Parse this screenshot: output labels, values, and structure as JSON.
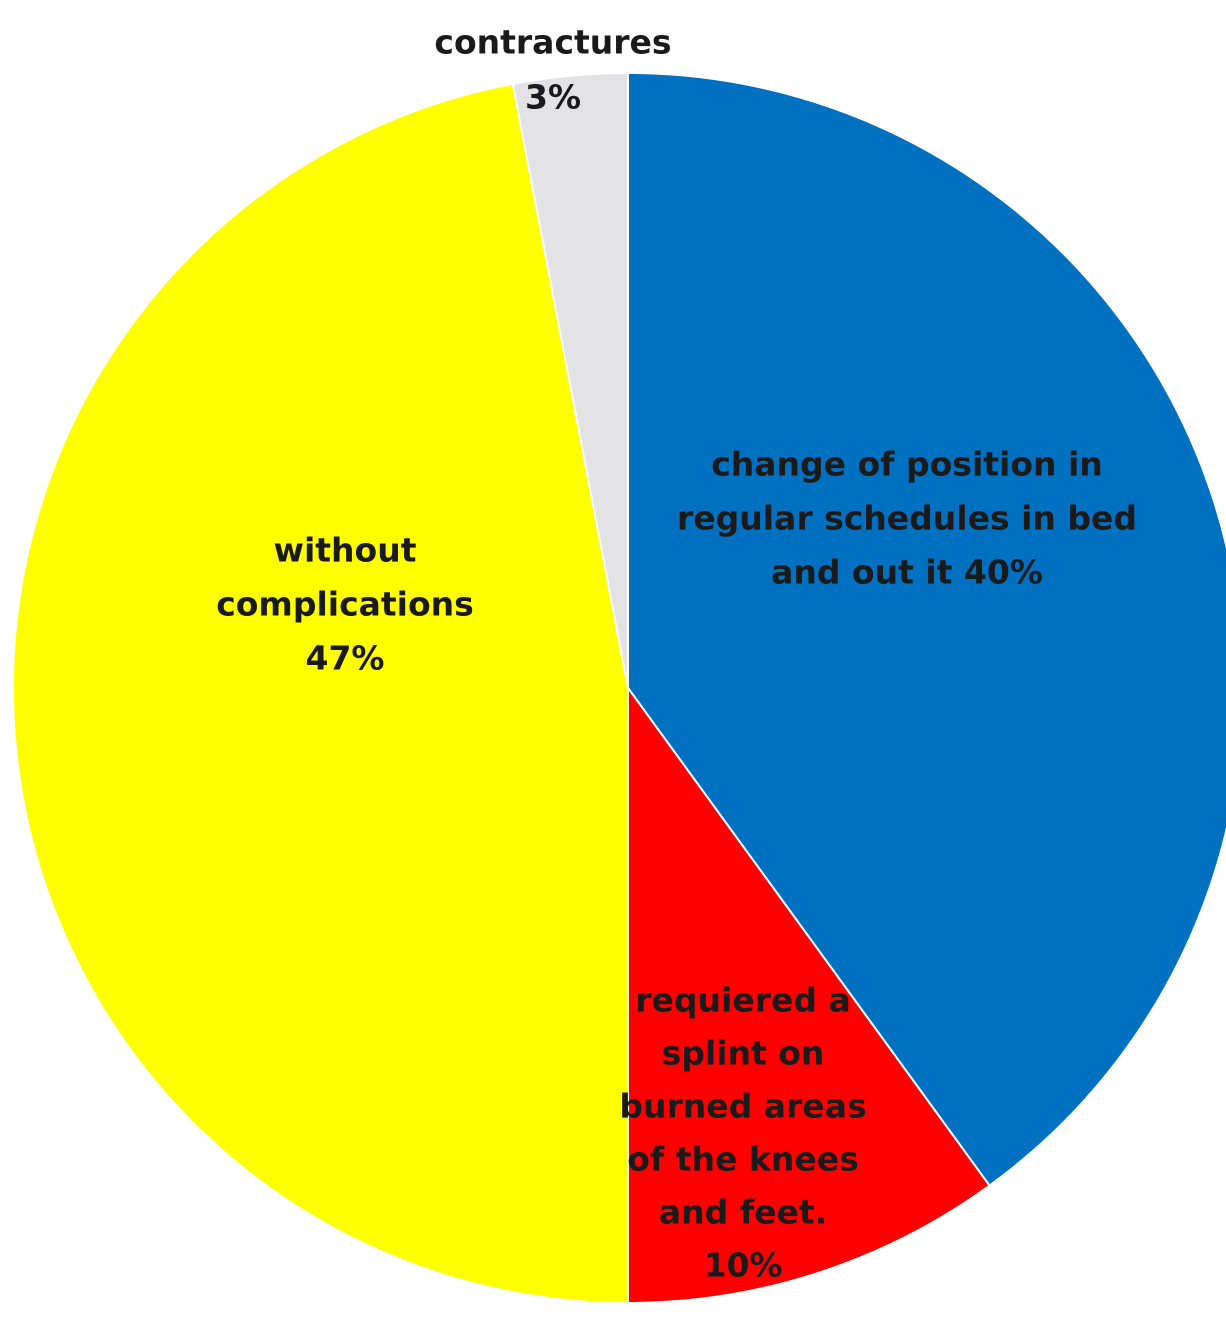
{
  "chart_data": {
    "type": "pie",
    "start_angle_deg": 0,
    "direction": "clockwise",
    "slices": [
      {
        "label_lines": [
          "change of position in",
          "regular schedules in bed",
          "and out it 40%"
        ],
        "value": 40,
        "color": "#0070C0"
      },
      {
        "label_lines": [
          "requiered a",
          "splint on",
          "burned areas",
          "of the knees",
          "and feet.",
          "10%"
        ],
        "value": 10,
        "color": "#FF0000"
      },
      {
        "label_lines": [
          "without",
          "complications",
          "47%"
        ],
        "value": 47,
        "color": "#FFFF00"
      },
      {
        "label_lines": [
          "contractures",
          "3%"
        ],
        "value": 3,
        "color": "#E3E3E6"
      }
    ]
  }
}
